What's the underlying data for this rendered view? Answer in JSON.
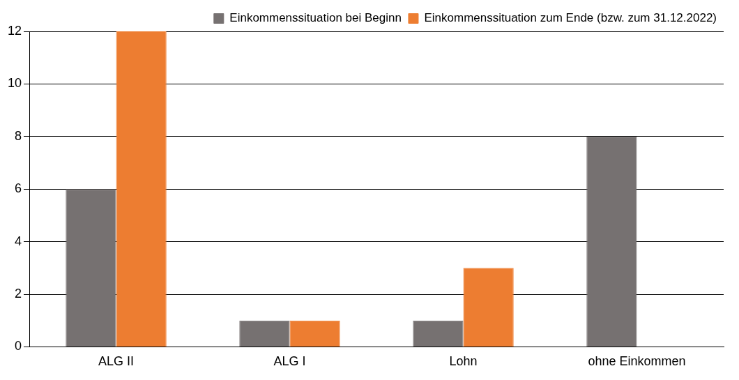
{
  "chart_data": {
    "type": "bar",
    "categories": [
      "ALG II",
      "ALG I",
      "Lohn",
      "ohne Einkommen"
    ],
    "series": [
      {
        "name": "Einkommenssituation bei Beginn",
        "color": "#767171",
        "values": [
          6,
          1,
          1,
          8
        ]
      },
      {
        "name": "Einkommenssituation zum Ende (bzw. zum 31.12.2022)",
        "color": "#ed7d31",
        "values": [
          12,
          1,
          3,
          0
        ]
      }
    ],
    "ylim": [
      0,
      12
    ],
    "yticks": [
      0,
      2,
      4,
      6,
      8,
      10,
      12
    ],
    "grid": "y",
    "legend": "top right"
  }
}
